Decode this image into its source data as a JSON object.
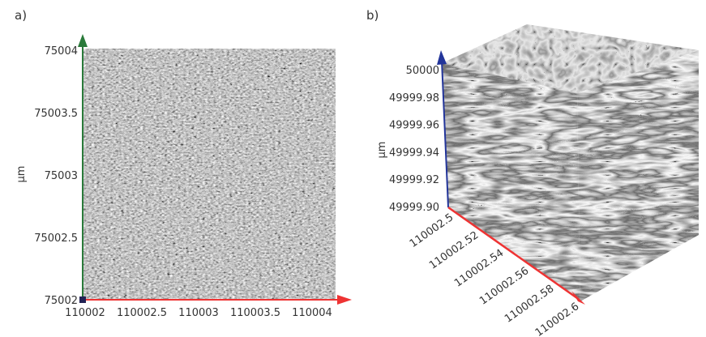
{
  "panels": [
    {
      "label": "a)",
      "y_label": "µm",
      "yticks": [
        "75004",
        "75003.5",
        "75003",
        "75002.5",
        "75002"
      ],
      "xticks": [
        "110002",
        "110002.5",
        "110003",
        "110003.5",
        "110004"
      ]
    },
    {
      "label": "b)",
      "z_label": "µm",
      "zticks": [
        "50000",
        "49999.98",
        "49999.96",
        "49999.94",
        "49999.92",
        "49999.90"
      ],
      "xticks": [
        "110002.5",
        "110002.52",
        "110002.54",
        "110002.56",
        "110002.58",
        "110002.6"
      ]
    }
  ]
}
